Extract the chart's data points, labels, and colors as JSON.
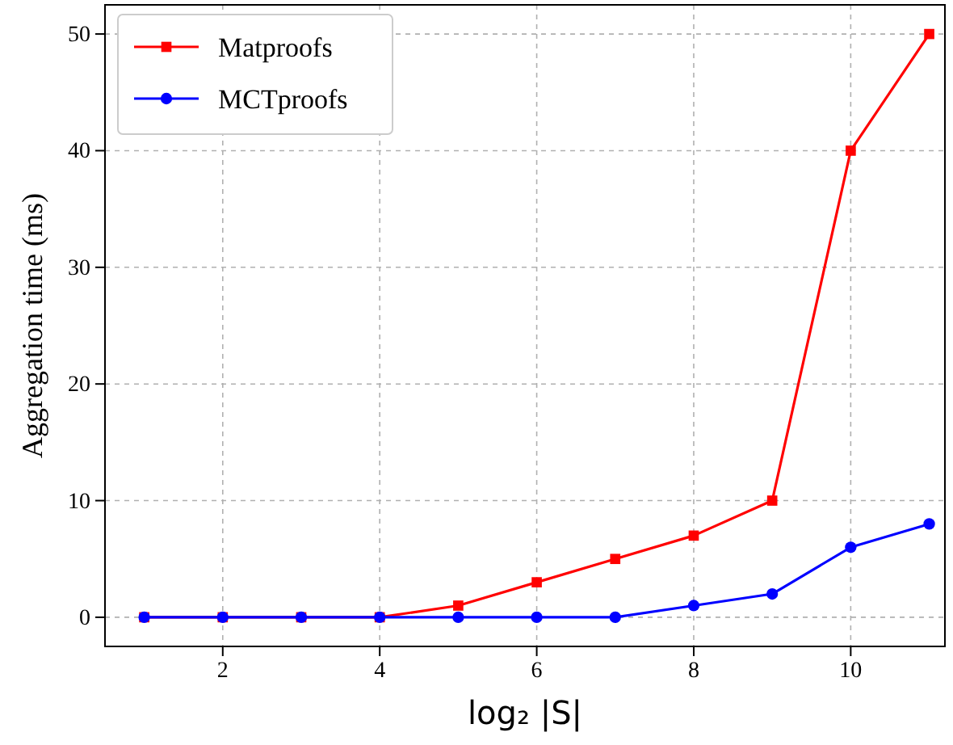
{
  "chart_data": {
    "type": "line",
    "xlabel": "log₂ |S|",
    "ylabel": "Aggregation time (ms)",
    "x": [
      1,
      2,
      3,
      4,
      5,
      6,
      7,
      8,
      9,
      10,
      11
    ],
    "series": [
      {
        "name": "Matproofs",
        "color": "#ff0000",
        "marker": "square",
        "values": [
          0,
          0,
          0,
          0,
          1,
          3,
          5,
          7,
          10,
          40,
          50
        ]
      },
      {
        "name": "MCTproofs",
        "color": "#0000ff",
        "marker": "circle",
        "values": [
          0,
          0,
          0,
          0,
          0,
          0,
          0,
          1,
          2,
          6,
          8
        ]
      }
    ],
    "xlim": [
      0.5,
      11.2
    ],
    "xticks": [
      2,
      4,
      6,
      8,
      10
    ],
    "ylim": [
      -2.5,
      52.5
    ],
    "yticks": [
      0,
      10,
      20,
      30,
      40,
      50
    ],
    "grid": true,
    "legend": "top left",
    "line_style": "solid"
  }
}
